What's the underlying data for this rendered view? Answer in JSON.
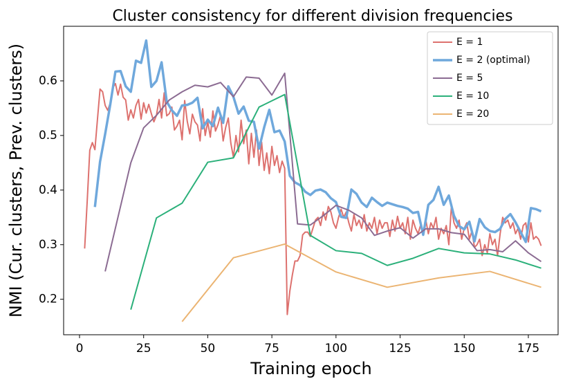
{
  "chart_data": {
    "type": "line",
    "title": "Cluster consistency for different division frequencies",
    "x_label": "Training epoch",
    "y_label": "NMI (Cur. clusters, Prev. clusters)",
    "xlim": [
      -6.2,
      186.6
    ],
    "ylim": [
      0.135,
      0.7
    ],
    "xticks": [
      0,
      25,
      50,
      75,
      100,
      125,
      150,
      175
    ],
    "yticks": [
      0.2,
      0.3,
      0.4,
      0.5,
      0.6
    ],
    "grid": false,
    "legend": "upper right",
    "series": [
      {
        "name": "E = 1",
        "color": "#dd716e",
        "linewidth": 2,
        "x": [
          2,
          3,
          4,
          5,
          6,
          7,
          8,
          9,
          10,
          11,
          12,
          13,
          14,
          15,
          16,
          17,
          18,
          19,
          20,
          21,
          22,
          23,
          24,
          25,
          26,
          27,
          28,
          29,
          30,
          31,
          32,
          33,
          34,
          35,
          36,
          37,
          38,
          39,
          40,
          41,
          42,
          43,
          44,
          45,
          46,
          47,
          48,
          49,
          50,
          51,
          52,
          53,
          54,
          55,
          56,
          57,
          58,
          59,
          60,
          61,
          62,
          63,
          64,
          65,
          66,
          67,
          68,
          69,
          70,
          71,
          72,
          73,
          74,
          75,
          76,
          77,
          78,
          79,
          80,
          81,
          82,
          83,
          84,
          85,
          86,
          87,
          88,
          89,
          90,
          91,
          92,
          93,
          94,
          95,
          96,
          97,
          98,
          99,
          100,
          101,
          102,
          103,
          104,
          105,
          106,
          107,
          108,
          109,
          110,
          111,
          112,
          113,
          114,
          115,
          116,
          117,
          118,
          119,
          120,
          121,
          122,
          123,
          124,
          125,
          126,
          127,
          128,
          129,
          130,
          131,
          132,
          133,
          134,
          135,
          136,
          137,
          138,
          139,
          140,
          141,
          142,
          143,
          144,
          145,
          146,
          147,
          148,
          149,
          150,
          151,
          152,
          153,
          154,
          155,
          156,
          157,
          158,
          159,
          160,
          161,
          162,
          163,
          164,
          165,
          166,
          167,
          168,
          169,
          170,
          171,
          172,
          173,
          174,
          175,
          176,
          177,
          178,
          179,
          180
        ],
        "values": [
          0.293,
          0.38,
          0.473,
          0.487,
          0.474,
          0.53,
          0.585,
          0.58,
          0.555,
          0.546,
          0.56,
          0.588,
          0.595,
          0.574,
          0.594,
          0.57,
          0.565,
          0.528,
          0.547,
          0.532,
          0.555,
          0.566,
          0.53,
          0.56,
          0.541,
          0.557,
          0.54,
          0.525,
          0.537,
          0.566,
          0.532,
          0.578,
          0.536,
          0.54,
          0.552,
          0.51,
          0.517,
          0.528,
          0.492,
          0.564,
          0.526,
          0.503,
          0.539,
          0.525,
          0.519,
          0.49,
          0.549,
          0.5,
          0.525,
          0.497,
          0.545,
          0.508,
          0.52,
          0.537,
          0.49,
          0.515,
          0.532,
          0.486,
          0.46,
          0.5,
          0.47,
          0.528,
          0.485,
          0.51,
          0.448,
          0.504,
          0.46,
          0.51,
          0.445,
          0.488,
          0.436,
          0.468,
          0.43,
          0.48,
          0.445,
          0.463,
          0.432,
          0.453,
          0.44,
          0.172,
          0.215,
          0.245,
          0.27,
          0.27,
          0.28,
          0.318,
          0.323,
          0.323,
          0.315,
          0.33,
          0.345,
          0.35,
          0.335,
          0.36,
          0.345,
          0.37,
          0.36,
          0.34,
          0.33,
          0.35,
          0.365,
          0.35,
          0.36,
          0.34,
          0.325,
          0.355,
          0.335,
          0.345,
          0.33,
          0.355,
          0.325,
          0.34,
          0.33,
          0.35,
          0.32,
          0.345,
          0.33,
          0.34,
          0.34,
          0.315,
          0.345,
          0.325,
          0.352,
          0.33,
          0.34,
          0.32,
          0.35,
          0.31,
          0.345,
          0.33,
          0.32,
          0.336,
          0.32,
          0.346,
          0.32,
          0.34,
          0.33,
          0.35,
          0.31,
          0.33,
          0.32,
          0.335,
          0.3,
          0.37,
          0.34,
          0.33,
          0.345,
          0.31,
          0.33,
          0.34,
          0.31,
          0.325,
          0.295,
          0.3,
          0.31,
          0.28,
          0.3,
          0.285,
          0.32,
          0.3,
          0.31,
          0.28,
          0.32,
          0.35,
          0.34,
          0.345,
          0.33,
          0.34,
          0.32,
          0.33,
          0.31,
          0.335,
          0.34,
          0.305,
          0.34,
          0.31,
          0.315,
          0.31,
          0.298
        ]
      },
      {
        "name": "E = 2 (optimal)",
        "color": "#6fa8dc",
        "linewidth": 3.5,
        "x": [
          6,
          8,
          10,
          12,
          14,
          16,
          18,
          20,
          22,
          24,
          26,
          28,
          30,
          32,
          34,
          36,
          38,
          40,
          42,
          44,
          46,
          48,
          50,
          52,
          54,
          56,
          58,
          60,
          62,
          64,
          66,
          68,
          70,
          72,
          74,
          76,
          78,
          80,
          82,
          84,
          86,
          88,
          90,
          92,
          94,
          96,
          98,
          100,
          102,
          104,
          106,
          108,
          110,
          112,
          114,
          116,
          118,
          120,
          122,
          124,
          126,
          128,
          130,
          132,
          134,
          136,
          138,
          140,
          142,
          144,
          146,
          148,
          150,
          152,
          154,
          156,
          158,
          160,
          162,
          164,
          166,
          168,
          170,
          172,
          174,
          176,
          178,
          180
        ],
        "values": [
          0.369,
          0.452,
          0.503,
          0.557,
          0.617,
          0.618,
          0.59,
          0.58,
          0.637,
          0.633,
          0.674,
          0.589,
          0.6,
          0.634,
          0.562,
          0.546,
          0.536,
          0.555,
          0.556,
          0.56,
          0.569,
          0.513,
          0.529,
          0.517,
          0.551,
          0.523,
          0.59,
          0.571,
          0.54,
          0.553,
          0.527,
          0.525,
          0.476,
          0.515,
          0.547,
          0.506,
          0.509,
          0.489,
          0.426,
          0.414,
          0.409,
          0.397,
          0.391,
          0.399,
          0.401,
          0.396,
          0.385,
          0.378,
          0.351,
          0.349,
          0.401,
          0.393,
          0.377,
          0.369,
          0.386,
          0.378,
          0.371,
          0.377,
          0.374,
          0.371,
          0.369,
          0.366,
          0.358,
          0.36,
          0.318,
          0.373,
          0.382,
          0.406,
          0.373,
          0.39,
          0.353,
          0.334,
          0.328,
          0.342,
          0.306,
          0.347,
          0.332,
          0.325,
          0.323,
          0.329,
          0.347,
          0.356,
          0.341,
          0.323,
          0.305,
          0.367,
          0.365,
          0.361
        ]
      },
      {
        "name": "E = 5",
        "color": "#8b6b92",
        "linewidth": 2,
        "x": [
          10,
          20,
          25,
          30,
          35,
          40,
          45,
          50,
          55,
          60,
          65,
          70,
          75,
          80,
          85,
          90,
          95,
          100,
          105,
          110,
          115,
          120,
          125,
          130,
          135,
          140,
          145,
          150,
          155,
          160,
          165,
          170,
          175,
          180
        ],
        "values": [
          0.251,
          0.45,
          0.514,
          0.537,
          0.565,
          0.58,
          0.592,
          0.589,
          0.597,
          0.571,
          0.607,
          0.605,
          0.574,
          0.614,
          0.338,
          0.336,
          0.353,
          0.372,
          0.363,
          0.349,
          0.317,
          0.325,
          0.331,
          0.312,
          0.329,
          0.329,
          0.322,
          0.319,
          0.289,
          0.291,
          0.287,
          0.307,
          0.285,
          0.269
        ]
      },
      {
        "name": "E = 10",
        "color": "#2bb07a",
        "linewidth": 2,
        "x": [
          20,
          30,
          40,
          50,
          60,
          70,
          80,
          90,
          100,
          110,
          120,
          130,
          140,
          150,
          160,
          170,
          180
        ],
        "values": [
          0.181,
          0.349,
          0.376,
          0.451,
          0.459,
          0.552,
          0.575,
          0.317,
          0.289,
          0.284,
          0.262,
          0.275,
          0.293,
          0.285,
          0.283,
          0.272,
          0.257
        ]
      },
      {
        "name": "E = 20",
        "color": "#ebb472",
        "linewidth": 2,
        "x": [
          40,
          60,
          80,
          100,
          120,
          140,
          160,
          180
        ],
        "values": [
          0.159,
          0.276,
          0.301,
          0.25,
          0.222,
          0.239,
          0.251,
          0.222
        ]
      }
    ]
  }
}
